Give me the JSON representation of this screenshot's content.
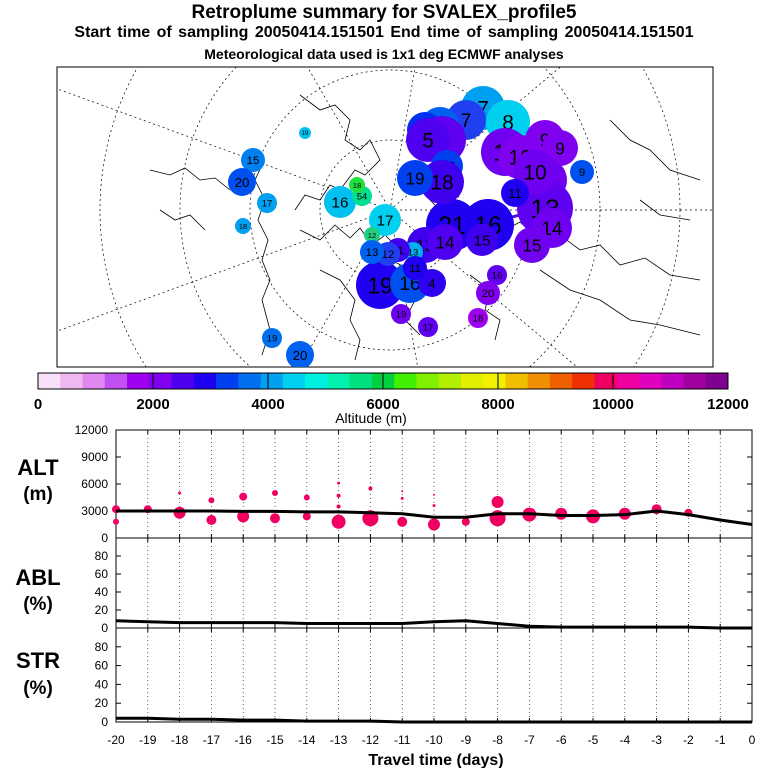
{
  "header": {
    "title": "Retroplume summary for SVALEX_profile5",
    "sampling_line": "Start time of sampling 20050414.151501     End time of sampling 20050414.151501",
    "met_line": "Meteorological data used is 1x1 deg ECMWF analyses"
  },
  "colorbar": {
    "tick_labels": [
      "0",
      "2000",
      "4000",
      "6000",
      "8000",
      "10000",
      "12000"
    ],
    "label": "Altitude (m)",
    "colors": [
      "#f8e0f8",
      "#f0b8f0",
      "#e088f0",
      "#c050f0",
      "#a000f0",
      "#8000f0",
      "#5000f0",
      "#2000f0",
      "#0040f0",
      "#0070f0",
      "#00a0f0",
      "#00d0f0",
      "#00f0e0",
      "#00f0b0",
      "#00e080",
      "#00d040",
      "#40f000",
      "#80f000",
      "#b0f000",
      "#e0f000",
      "#f0f000",
      "#f0c000",
      "#f09000",
      "#f06000",
      "#f03000",
      "#f00060",
      "#f000a0",
      "#e000c0",
      "#c000c0",
      "#a000a0",
      "#800090"
    ]
  },
  "map": {
    "plume_markers": [
      {
        "label": "7",
        "color": "#00a0f0",
        "size": 22
      },
      {
        "label": "8",
        "color": "#00d0f0",
        "size": 22
      },
      {
        "label": "7",
        "color": "#2040f0",
        "size": 20
      },
      {
        "label": "6",
        "color": "#0060f0",
        "size": 20
      },
      {
        "label": "5",
        "color": "#0030f0",
        "size": 18
      },
      {
        "label": "6",
        "color": "#6000f0",
        "size": 24
      },
      {
        "label": "5",
        "color": "#5000f0",
        "size": 22
      },
      {
        "label": "9",
        "color": "#8000f0",
        "size": 20
      },
      {
        "label": "11",
        "color": "#7000f0",
        "size": 24
      },
      {
        "label": "10",
        "color": "#8000f0",
        "size": 22
      },
      {
        "label": "9",
        "color": "#8000f0",
        "size": 18
      },
      {
        "label": "12",
        "color": "#7000f0",
        "size": 22
      },
      {
        "label": "13",
        "color": "#6000f0",
        "size": 28
      },
      {
        "label": "10",
        "color": "#7000f0",
        "size": 22
      },
      {
        "label": "14",
        "color": "#7000f0",
        "size": 20
      },
      {
        "label": "15",
        "color": "#7000f0",
        "size": 18
      },
      {
        "label": "9",
        "color": "#0050f0",
        "size": 12
      },
      {
        "label": "11",
        "color": "#2000f0",
        "size": 14
      },
      {
        "label": "16",
        "color": "#2000f0",
        "size": 26
      },
      {
        "label": "21",
        "color": "#2000f0",
        "size": 26
      },
      {
        "label": "13",
        "color": "#4000f0",
        "size": 18
      },
      {
        "label": "14",
        "color": "#5000f0",
        "size": 18
      },
      {
        "label": "15",
        "color": "#4000f0",
        "size": 16
      },
      {
        "label": "20",
        "color": "#0040f0",
        "size": 16
      },
      {
        "label": "19",
        "color": "#2000f0",
        "size": 24
      },
      {
        "label": "16",
        "color": "#0050f0",
        "size": 20
      },
      {
        "label": "16",
        "color": "#00c0f0",
        "size": 16
      },
      {
        "label": "17",
        "color": "#00d0f0",
        "size": 16
      },
      {
        "label": "54",
        "color": "#00e090",
        "size": 10
      },
      {
        "label": "18",
        "color": "#20e040",
        "size": 8
      },
      {
        "label": "12",
        "color": "#20d080",
        "size": 8
      },
      {
        "label": "18",
        "color": "#4000f0",
        "size": 22
      },
      {
        "label": "19",
        "color": "#0040f0",
        "size": 18
      },
      {
        "label": "4",
        "color": "#3000f0",
        "size": 14
      },
      {
        "label": "13",
        "color": "#00b0f0",
        "size": 10
      },
      {
        "label": "15",
        "color": "#0080f0",
        "size": 12
      },
      {
        "label": "20",
        "color": "#0050f0",
        "size": 14
      },
      {
        "label": "17",
        "color": "#00a0f0",
        "size": 10
      },
      {
        "label": "18",
        "color": "#00a0f0",
        "size": 8
      },
      {
        "label": "19",
        "color": "#00c0f0",
        "size": 6
      },
      {
        "label": "19",
        "color": "#0070f0",
        "size": 10
      },
      {
        "label": "20",
        "color": "#0060f0",
        "size": 10
      },
      {
        "label": "16",
        "color": "#6000f0",
        "size": 10
      },
      {
        "label": "17",
        "color": "#6000f0",
        "size": 10
      },
      {
        "label": "19",
        "color": "#7000f0",
        "size": 10
      },
      {
        "label": "18",
        "color": "#a000f0",
        "size": 10
      },
      {
        "label": "20",
        "color": "#8000f0",
        "size": 12
      },
      {
        "label": "11",
        "color": "#2000f0",
        "size": 12
      },
      {
        "label": "11",
        "color": "#4000f0",
        "size": 12
      },
      {
        "label": "12",
        "color": "#2040f0",
        "size": 12
      },
      {
        "label": "13",
        "color": "#0060f0",
        "size": 12
      },
      {
        "label": "20",
        "color": "#0060f0",
        "size": 14
      }
    ]
  },
  "panels": {
    "alt_label": "ALT",
    "alt_unit": "(m)",
    "abl_label": "ABL",
    "abl_unit": "(%)",
    "str_label": "STR",
    "str_unit": "(%)",
    "x_axis_label": "Travel time (days)"
  },
  "chart_data": [
    {
      "type": "line",
      "title": "ALT",
      "xlabel": "Travel time (days)",
      "ylabel": "(m)",
      "ylim": [
        0,
        12000
      ],
      "xlim": [
        -20,
        0
      ],
      "y_ticks": [
        "0",
        "3000",
        "6000",
        "9000",
        "12000"
      ],
      "x": [
        -20,
        -19,
        -18,
        -17,
        -16,
        -15,
        -14,
        -13,
        -12,
        -11,
        -10,
        -9,
        -8,
        -7,
        -6,
        -5,
        -4,
        -3,
        -2,
        -1,
        0
      ],
      "values": [
        3000,
        3000,
        3000,
        3000,
        2950,
        2950,
        2900,
        2900,
        2800,
        2700,
        2300,
        2300,
        2700,
        2700,
        2500,
        2500,
        2600,
        3000,
        2600,
        2000,
        1500
      ],
      "points": [
        {
          "x": -20,
          "y": 3200,
          "s": 4
        },
        {
          "x": -20,
          "y": 1800,
          "s": 3
        },
        {
          "x": -19,
          "y": 3200,
          "s": 4
        },
        {
          "x": -18,
          "y": 2800,
          "s": 6
        },
        {
          "x": -18,
          "y": 5000,
          "s": 1.5
        },
        {
          "x": -17,
          "y": 4200,
          "s": 3
        },
        {
          "x": -17,
          "y": 2000,
          "s": 5
        },
        {
          "x": -16,
          "y": 4600,
          "s": 4
        },
        {
          "x": -16,
          "y": 2400,
          "s": 6
        },
        {
          "x": -15,
          "y": 5000,
          "s": 3
        },
        {
          "x": -15,
          "y": 2200,
          "s": 5
        },
        {
          "x": -14,
          "y": 4500,
          "s": 3
        },
        {
          "x": -14,
          "y": 2400,
          "s": 4
        },
        {
          "x": -13,
          "y": 6100,
          "s": 1.5
        },
        {
          "x": -13,
          "y": 4700,
          "s": 2
        },
        {
          "x": -13,
          "y": 3500,
          "s": 2
        },
        {
          "x": -13,
          "y": 1800,
          "s": 7
        },
        {
          "x": -12,
          "y": 5500,
          "s": 2
        },
        {
          "x": -12,
          "y": 2200,
          "s": 8
        },
        {
          "x": -11,
          "y": 5200,
          "s": 1
        },
        {
          "x": -11,
          "y": 4400,
          "s": 1.5
        },
        {
          "x": -11,
          "y": 1800,
          "s": 5
        },
        {
          "x": -10,
          "y": 4800,
          "s": 1
        },
        {
          "x": -10,
          "y": 3600,
          "s": 1.5
        },
        {
          "x": -10,
          "y": 1500,
          "s": 6
        },
        {
          "x": -9,
          "y": 1800,
          "s": 4
        },
        {
          "x": -8,
          "y": 4000,
          "s": 6
        },
        {
          "x": -8,
          "y": 2200,
          "s": 8
        },
        {
          "x": -7,
          "y": 2600,
          "s": 7
        },
        {
          "x": -6,
          "y": 2700,
          "s": 6
        },
        {
          "x": -5,
          "y": 2400,
          "s": 7
        },
        {
          "x": -4,
          "y": 2700,
          "s": 6
        },
        {
          "x": -3,
          "y": 3200,
          "s": 5
        },
        {
          "x": -2,
          "y": 2800,
          "s": 4
        }
      ]
    },
    {
      "type": "line",
      "title": "ABL",
      "xlabel": "Travel time (days)",
      "ylabel": "(%)",
      "ylim": [
        0,
        100
      ],
      "xlim": [
        -20,
        0
      ],
      "y_ticks": [
        "0",
        "20",
        "40",
        "60",
        "80"
      ],
      "x": [
        -20,
        -19,
        -18,
        -17,
        -16,
        -15,
        -14,
        -13,
        -12,
        -11,
        -10,
        -9,
        -8,
        -7,
        -6,
        -5,
        -4,
        -3,
        -2,
        -1,
        0
      ],
      "values": [
        8,
        7,
        6,
        6,
        6,
        6,
        5,
        5,
        5,
        5,
        7,
        8,
        5,
        2,
        1,
        1,
        1,
        1,
        1,
        0,
        0
      ]
    },
    {
      "type": "line",
      "title": "STR",
      "xlabel": "Travel time (days)",
      "ylabel": "(%)",
      "ylim": [
        0,
        100
      ],
      "xlim": [
        -20,
        0
      ],
      "y_ticks": [
        "0",
        "20",
        "40",
        "60",
        "80"
      ],
      "x_tick_labels": [
        "-20",
        "-19",
        "-18",
        "-17",
        "-16",
        "-15",
        "-14",
        "-13",
        "-12",
        "-11",
        "-10",
        "-9",
        "-8",
        "-7",
        "-6",
        "-5",
        "-4",
        "-3",
        "-2",
        "-1",
        "0"
      ],
      "x": [
        -20,
        -19,
        -18,
        -17,
        -16,
        -15,
        -14,
        -13,
        -12,
        -11,
        -10,
        -9,
        -8,
        -7,
        -6,
        -5,
        -4,
        -3,
        -2,
        -1,
        0
      ],
      "values": [
        4,
        4,
        3,
        3,
        2,
        2,
        1,
        1,
        1,
        0,
        0,
        0,
        0,
        0,
        0,
        0,
        0,
        0,
        0,
        0,
        0
      ]
    }
  ]
}
